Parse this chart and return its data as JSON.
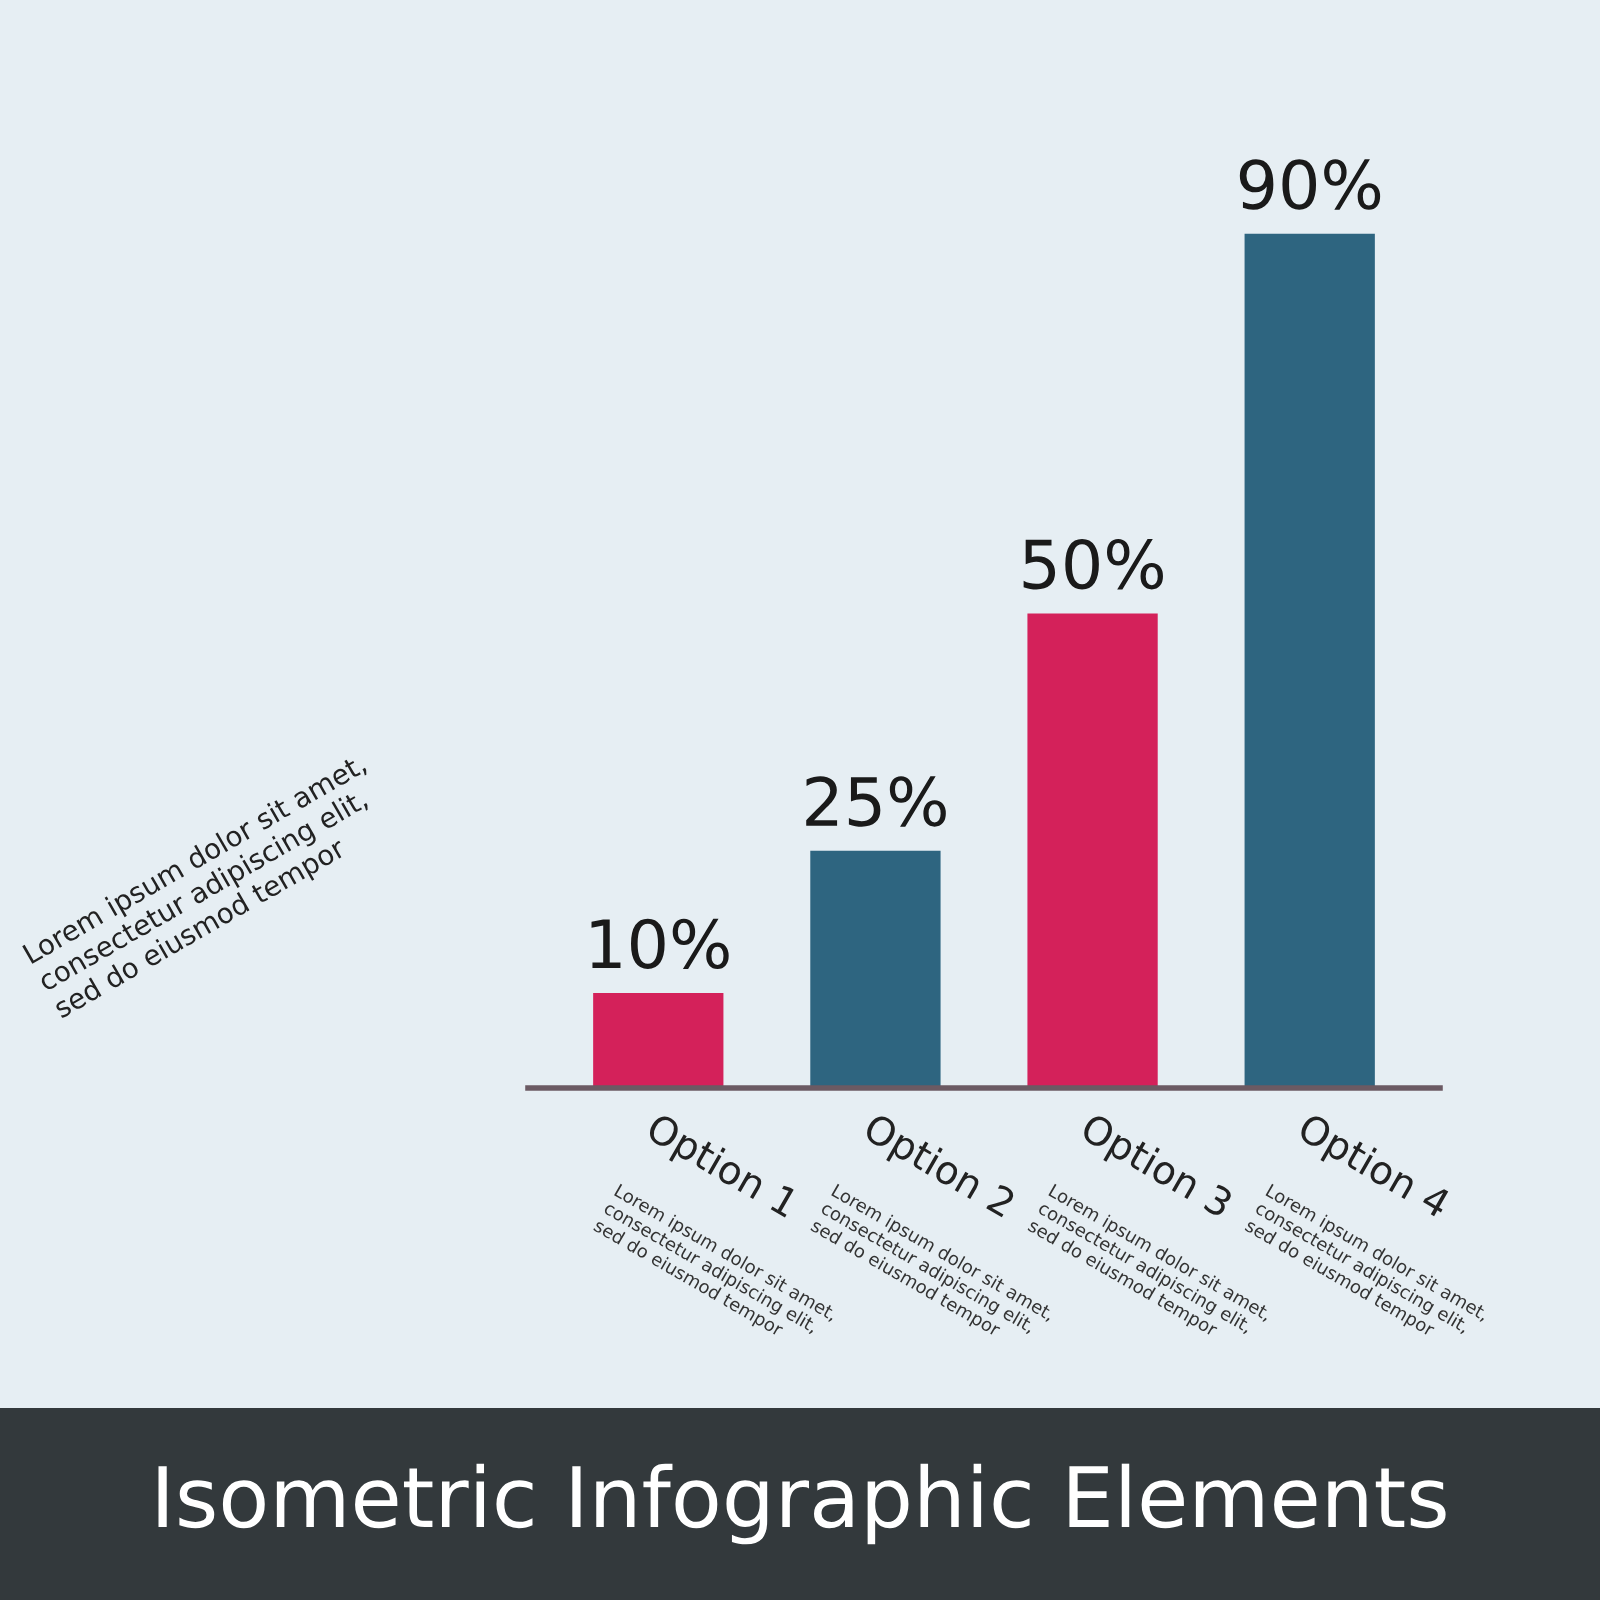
{
  "chart_data": {
    "type": "bar",
    "title": "Isometric Infographic Elements",
    "categories": [
      "Option 1",
      "Option 2",
      "Option 3",
      "Option 4"
    ],
    "values": [
      10,
      25,
      50,
      90
    ],
    "colors": [
      "#d4215a",
      "#2e6580",
      "#d4215a",
      "#2e6580"
    ],
    "value_labels": [
      "10%",
      "25%",
      "50%",
      "90%"
    ],
    "annotations": [
      "Lorem ipsum dolor sit amet,\nconsectetur adipiscing elit,\nsed do eiusmod tempor",
      "Lorem ipsum dolor sit amet,\nconsectetur adipiscing elit,\nsed do eiusmod tempor",
      "Lorem ipsum dolor sit amet,\nconsectetur adipiscing elit,\nsed do eiusmod tempor",
      "Lorem ipsum dolor sit amet,\nconsectetur adipiscing elit,\nsed do eiusmod tempor",
      "Lorem ipsum dolor sit amet,\nconsectetur adipiscing elit,\nsed do eiusmod tempor"
    ]
  }
}
